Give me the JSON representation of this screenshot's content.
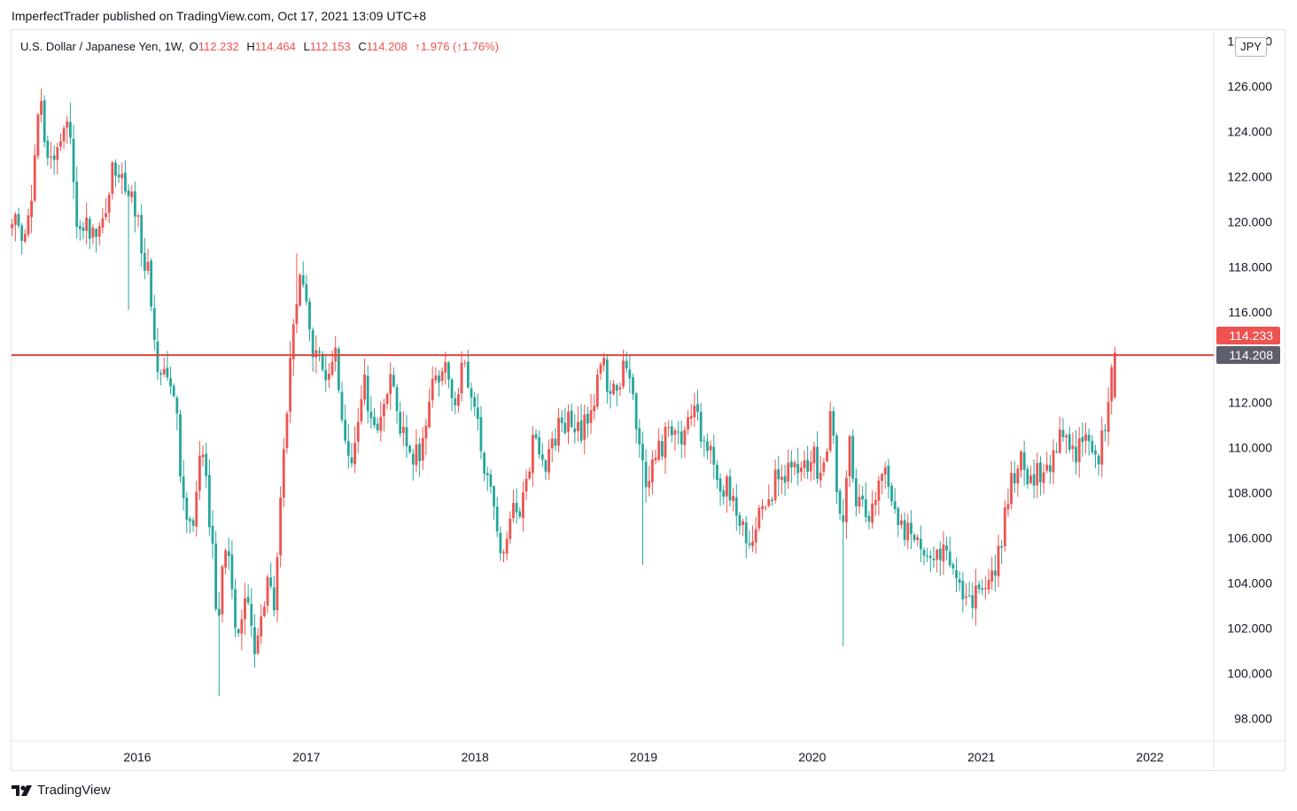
{
  "header": {
    "published_line": "ImperfectTrader published on TradingView.com, Oct 17, 2021 13:09 UTC+8"
  },
  "legend": {
    "symbol": "U.S. Dollar / Japanese Yen, 1W,",
    "open_label": "O",
    "open": "112.232",
    "high_label": "H",
    "high": "114.464",
    "low_label": "L",
    "low": "112.153",
    "close_label": "C",
    "close": "114.208",
    "change": "↑1.976 (↑1.76%)"
  },
  "currency_button": "JPY",
  "footer": {
    "brand": "TradingView"
  },
  "colors": {
    "up": "#ef5350",
    "down": "#26a69a",
    "level_line": "#e0453f",
    "last_price_badge": "#ef5350",
    "close_badge": "#5d606b",
    "grid_border": "#e0e3eb"
  },
  "chart_data": {
    "type": "candlestick",
    "symbol": "USDJPY",
    "timeframe": "1W",
    "x_range": [
      "2015-04",
      "2021-10"
    ],
    "y_range": [
      97,
      128.5
    ],
    "y_ticks": [
      "98.000",
      "100.000",
      "102.000",
      "104.000",
      "106.000",
      "108.000",
      "110.000",
      "112.000",
      "114.000",
      "116.000",
      "118.000",
      "120.000",
      "122.000",
      "124.000",
      "126.000",
      "128.000"
    ],
    "x_ticks": [
      {
        "date": "2016-01",
        "label": "2016"
      },
      {
        "date": "2017-01",
        "label": "2017"
      },
      {
        "date": "2018-01",
        "label": "2018"
      },
      {
        "date": "2019-01",
        "label": "2019"
      },
      {
        "date": "2020-01",
        "label": "2020"
      },
      {
        "date": "2021-01",
        "label": "2021"
      },
      {
        "date": "2022-01",
        "label": "2022"
      }
    ],
    "horizontal_levels": [
      {
        "price": 114.1
      }
    ],
    "price_badges": [
      {
        "price": 114.233,
        "label": "114.233",
        "style": "last"
      },
      {
        "price": 114.208,
        "label": "114.208",
        "style": "close"
      }
    ],
    "anchors": [
      [
        "2015-04-05",
        120.0
      ],
      [
        "2015-05-10",
        119.2
      ],
      [
        "2015-06-07",
        125.5
      ],
      [
        "2015-06-28",
        122.8
      ],
      [
        "2015-08-09",
        124.4
      ],
      [
        "2015-08-30",
        119.0
      ],
      [
        "2015-09-27",
        120.0
      ],
      [
        "2015-10-18",
        119.2
      ],
      [
        "2015-11-15",
        122.8
      ],
      [
        "2015-12-20",
        121.2
      ],
      [
        "2016-01-31",
        117.5
      ],
      [
        "2016-02-14",
        113.4
      ],
      [
        "2016-03-06",
        113.8
      ],
      [
        "2016-03-27",
        112.7
      ],
      [
        "2016-04-10",
        108.0
      ],
      [
        "2016-05-01",
        106.5
      ],
      [
        "2016-05-22",
        110.2
      ],
      [
        "2016-06-12",
        106.0
      ],
      [
        "2016-06-26",
        102.6
      ],
      [
        "2016-07-17",
        106.0
      ],
      [
        "2016-08-07",
        101.8
      ],
      [
        "2016-08-28",
        103.5
      ],
      [
        "2016-09-18",
        100.8
      ],
      [
        "2016-10-09",
        103.8
      ],
      [
        "2016-10-30",
        103.2
      ],
      [
        "2016-11-13",
        108.5
      ],
      [
        "2016-12-04",
        114.5
      ],
      [
        "2016-12-18",
        117.5
      ],
      [
        "2017-01-01",
        116.8
      ],
      [
        "2017-01-22",
        114.0
      ],
      [
        "2017-02-12",
        113.2
      ],
      [
        "2017-03-05",
        114.5
      ],
      [
        "2017-03-26",
        111.3
      ],
      [
        "2017-04-16",
        109.0
      ],
      [
        "2017-05-07",
        113.0
      ],
      [
        "2017-05-28",
        110.7
      ],
      [
        "2017-06-18",
        111.1
      ],
      [
        "2017-07-09",
        113.9
      ],
      [
        "2017-07-30",
        110.5
      ],
      [
        "2017-08-20",
        109.3
      ],
      [
        "2017-09-10",
        109.9
      ],
      [
        "2017-10-01",
        112.6
      ],
      [
        "2017-10-29",
        113.8
      ],
      [
        "2017-11-19",
        112.1
      ],
      [
        "2017-12-10",
        113.5
      ],
      [
        "2018-01-07",
        111.1
      ],
      [
        "2018-02-04",
        108.2
      ],
      [
        "2018-03-04",
        105.6
      ],
      [
        "2018-03-25",
        106.8
      ],
      [
        "2018-04-15",
        107.7
      ],
      [
        "2018-05-13",
        110.6
      ],
      [
        "2018-06-03",
        109.4
      ],
      [
        "2018-07-01",
        110.7
      ],
      [
        "2018-07-22",
        111.2
      ],
      [
        "2018-08-19",
        110.5
      ],
      [
        "2018-09-16",
        112.0
      ],
      [
        "2018-10-07",
        113.7
      ],
      [
        "2018-10-28",
        112.3
      ],
      [
        "2018-11-25",
        113.5
      ],
      [
        "2018-12-16",
        111.5
      ],
      [
        "2019-01-06",
        108.5
      ],
      [
        "2019-01-27",
        109.5
      ],
      [
        "2019-02-24",
        110.7
      ],
      [
        "2019-03-24",
        110.0
      ],
      [
        "2019-04-21",
        111.7
      ],
      [
        "2019-05-19",
        110.0
      ],
      [
        "2019-06-16",
        108.5
      ],
      [
        "2019-07-07",
        108.0
      ],
      [
        "2019-08-04",
        106.4
      ],
      [
        "2019-08-25",
        105.4
      ],
      [
        "2019-09-15",
        107.8
      ],
      [
        "2019-10-13",
        108.3
      ],
      [
        "2019-11-10",
        109.0
      ],
      [
        "2019-12-08",
        108.8
      ],
      [
        "2020-01-05",
        109.5
      ],
      [
        "2020-01-26",
        108.9
      ],
      [
        "2020-02-16",
        111.5
      ],
      [
        "2020-03-08",
        105.5
      ],
      [
        "2020-03-22",
        110.5
      ],
      [
        "2020-04-12",
        107.5
      ],
      [
        "2020-05-10",
        107.2
      ],
      [
        "2020-06-07",
        109.5
      ],
      [
        "2020-06-28",
        107.3
      ],
      [
        "2020-07-26",
        106.0
      ],
      [
        "2020-08-16",
        106.5
      ],
      [
        "2020-09-13",
        105.0
      ],
      [
        "2020-10-11",
        105.3
      ],
      [
        "2020-11-01",
        104.3
      ],
      [
        "2020-11-22",
        104.0
      ],
      [
        "2020-12-13",
        103.5
      ],
      [
        "2021-01-03",
        103.3
      ],
      [
        "2021-01-24",
        104.0
      ],
      [
        "2021-02-14",
        105.4
      ],
      [
        "2021-03-07",
        108.0
      ],
      [
        "2021-03-28",
        109.7
      ],
      [
        "2021-04-18",
        108.3
      ],
      [
        "2021-05-09",
        108.8
      ],
      [
        "2021-06-06",
        109.5
      ],
      [
        "2021-06-27",
        110.5
      ],
      [
        "2021-07-18",
        109.7
      ],
      [
        "2021-08-08",
        110.2
      ],
      [
        "2021-09-05",
        109.8
      ],
      [
        "2021-09-19",
        109.9
      ],
      [
        "2021-09-26",
        110.9
      ],
      [
        "2021-10-03",
        111.0
      ],
      [
        "2021-10-10",
        112.23
      ],
      [
        "2021-10-17",
        114.208
      ]
    ],
    "spikes": [
      {
        "date": "2015-12-13",
        "low": 116.1
      },
      {
        "date": "2016-06-26",
        "low": 99.0
      },
      {
        "date": "2018-12-30",
        "low": 104.8
      },
      {
        "date": "2020-03-08",
        "low": 101.2
      },
      {
        "date": "2016-12-11",
        "high": 118.6
      },
      {
        "date": "2015-06-07",
        "high": 125.9
      },
      {
        "date": "2015-08-09",
        "high": 125.3
      }
    ],
    "last_candle": {
      "date": "2021-10-17",
      "open": 112.232,
      "high": 114.464,
      "low": 112.153,
      "close": 114.208
    }
  }
}
